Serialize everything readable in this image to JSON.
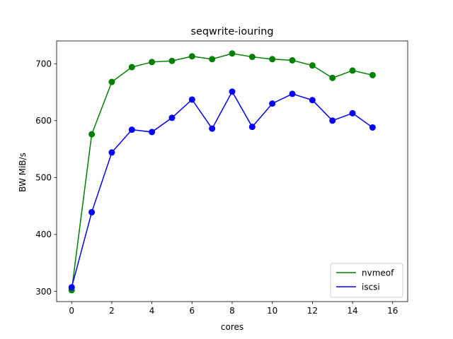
{
  "chart_data": {
    "type": "line",
    "title": "seqwrite-iouring",
    "xlabel": "cores",
    "ylabel": "BW MiB/s",
    "xlim": [
      -0.75,
      16.75
    ],
    "ylim": [
      282,
      740
    ],
    "xticks": [
      0,
      2,
      4,
      6,
      8,
      10,
      12,
      14,
      16
    ],
    "yticks": [
      300,
      400,
      500,
      600,
      700
    ],
    "grid": false,
    "legend_position": "lower-right",
    "markers": "circle",
    "x": [
      0,
      1,
      2,
      3,
      4,
      5,
      6,
      7,
      8,
      9,
      10,
      11,
      12,
      13,
      14,
      15
    ],
    "series": [
      {
        "name": "nvmeof",
        "color": "#008000",
        "values": [
          302,
          576,
          668,
          694,
          703,
          705,
          713,
          708,
          718,
          712,
          708,
          706,
          697,
          675,
          688,
          680
        ]
      },
      {
        "name": "iscsi",
        "color": "#0000ff",
        "values": [
          307,
          439,
          544,
          584,
          580,
          605,
          637,
          586,
          651,
          589,
          630,
          647,
          636,
          600,
          613,
          588
        ]
      }
    ]
  }
}
